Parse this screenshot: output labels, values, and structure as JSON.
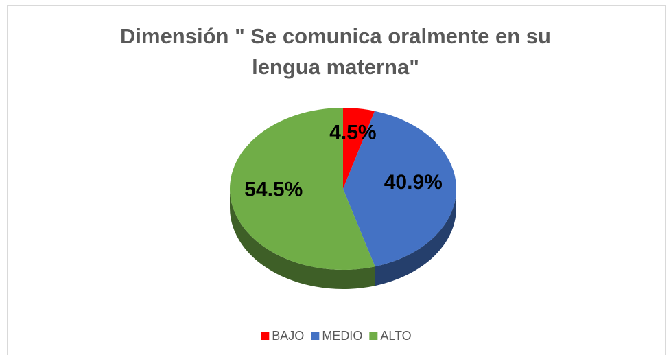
{
  "chart_data": {
    "type": "pie",
    "title": "Dimensión \" Se comunica oralmente en su lengua materna\"",
    "categories": [
      "BAJO",
      "MEDIO",
      "ALTO"
    ],
    "values": [
      4.5,
      40.9,
      54.5
    ],
    "value_labels": [
      "4.5%",
      "40.9%",
      "54.5%"
    ],
    "colors": [
      "#ff0000",
      "#4472c4",
      "#70ad47"
    ],
    "legend": "bottom"
  }
}
